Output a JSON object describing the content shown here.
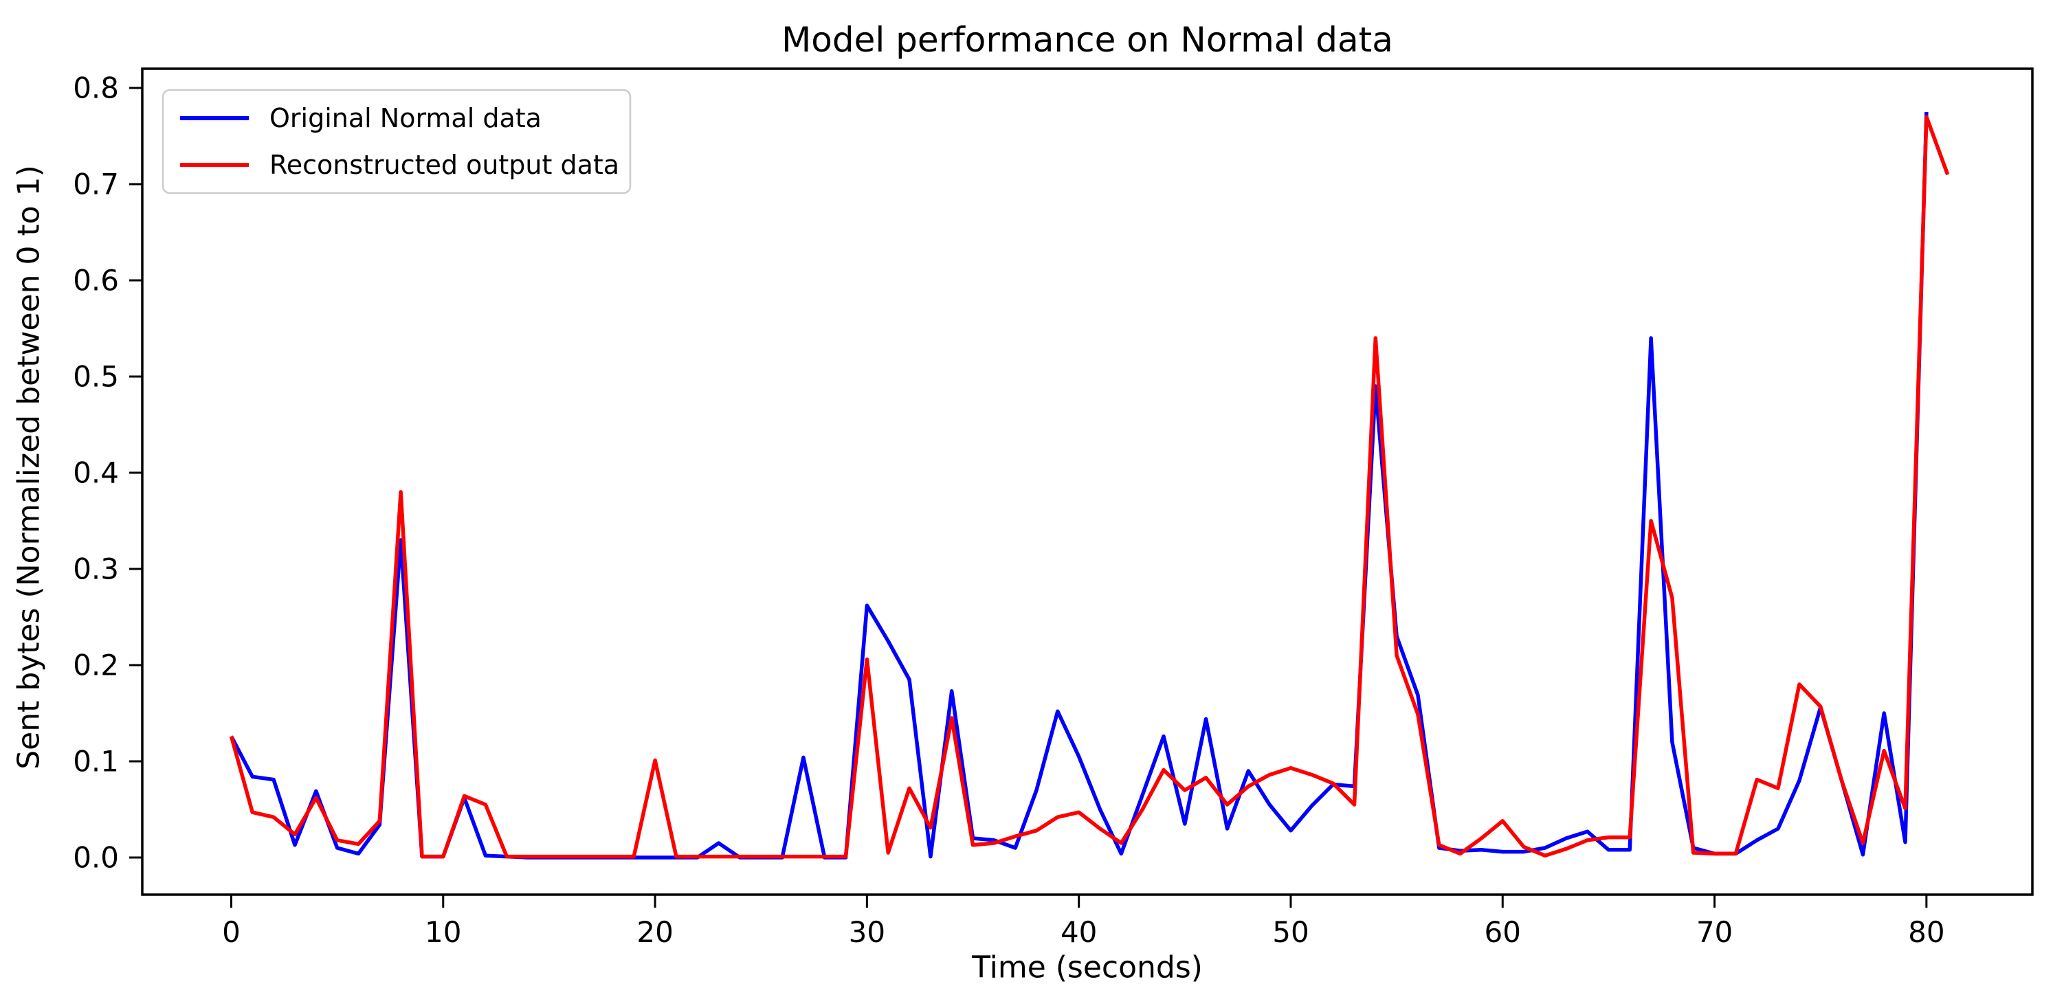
{
  "title": "Model performance on Normal data",
  "axes": {
    "xlabel": "Time (seconds)",
    "ylabel": "Sent bytes (Normalized between 0 to 1)"
  },
  "legend": {
    "position": "upper left",
    "entries": [
      {
        "label": "Original Normal data",
        "color": "#0000ff"
      },
      {
        "label": "Reconstructed output data",
        "color": "#ff0000"
      }
    ]
  },
  "colors": {
    "series_blue": "#0000ff",
    "series_red": "#ff0000",
    "spine": "#000000",
    "legend_border": "#cccccc",
    "background": "#ffffff"
  },
  "chart_data": {
    "type": "line",
    "title": "Model performance on Normal data",
    "xlabel": "Time (seconds)",
    "ylabel": "Sent bytes (Normalized between 0 to 1)",
    "xlim": [
      -4.2,
      85.0
    ],
    "ylim": [
      -0.0386,
      0.82
    ],
    "xticks": [
      0,
      10,
      20,
      30,
      40,
      50,
      60,
      70,
      80
    ],
    "yticks": [
      0.0,
      0.1,
      0.2,
      0.3,
      0.4,
      0.5,
      0.6,
      0.7,
      0.8
    ],
    "ytick_labels": [
      "0.0",
      "0.1",
      "0.2",
      "0.3",
      "0.4",
      "0.5",
      "0.6",
      "0.7",
      "0.8"
    ],
    "grid": false,
    "legend_position": "upper left",
    "series": [
      {
        "name": "Original Normal data",
        "color": "#0000ff",
        "x": [
          0,
          1,
          2,
          3,
          4,
          5,
          6,
          7,
          8,
          9,
          10,
          11,
          12,
          13,
          14,
          15,
          16,
          17,
          18,
          19,
          20,
          21,
          22,
          23,
          24,
          25,
          26,
          27,
          28,
          29,
          30,
          31,
          32,
          33,
          34,
          35,
          36,
          37,
          38,
          39,
          40,
          41,
          42,
          43,
          44,
          45,
          46,
          47,
          48,
          49,
          50,
          51,
          52,
          53,
          54,
          55,
          56,
          57,
          58,
          59,
          60,
          61,
          62,
          63,
          64,
          65,
          66,
          67,
          68,
          69,
          70,
          71,
          72,
          73,
          74,
          75,
          76,
          77,
          78,
          79,
          80
        ],
        "y": [
          0.126,
          0.084,
          0.081,
          0.013,
          0.069,
          0.01,
          0.004,
          0.034,
          0.33,
          0.001,
          0.001,
          0.062,
          0.002,
          0.001,
          0.0,
          0.0,
          0.0,
          0.0,
          0.0,
          0.0,
          0.0,
          0.0,
          0.0,
          0.015,
          0.0,
          0.0,
          0.0,
          0.104,
          0.0,
          0.0,
          0.262,
          0.225,
          0.185,
          0.001,
          0.173,
          0.02,
          0.018,
          0.01,
          0.07,
          0.152,
          0.105,
          0.05,
          0.004,
          0.065,
          0.126,
          0.035,
          0.144,
          0.03,
          0.09,
          0.055,
          0.028,
          0.054,
          0.076,
          0.074,
          0.49,
          0.23,
          0.169,
          0.01,
          0.007,
          0.008,
          0.006,
          0.006,
          0.01,
          0.02,
          0.027,
          0.008,
          0.008,
          0.54,
          0.12,
          0.01,
          0.004,
          0.004,
          0.018,
          0.03,
          0.08,
          0.156,
          0.08,
          0.003,
          0.15,
          0.016,
          0.775
        ]
      },
      {
        "name": "Reconstructed output data",
        "color": "#ff0000",
        "x": [
          0,
          1,
          2,
          3,
          4,
          5,
          6,
          7,
          8,
          9,
          10,
          11,
          12,
          13,
          14,
          15,
          16,
          17,
          18,
          19,
          20,
          21,
          22,
          23,
          24,
          25,
          26,
          27,
          28,
          29,
          30,
          31,
          32,
          33,
          34,
          35,
          36,
          37,
          38,
          39,
          40,
          41,
          42,
          43,
          44,
          45,
          46,
          47,
          48,
          49,
          50,
          51,
          52,
          53,
          54,
          55,
          56,
          57,
          58,
          59,
          60,
          61,
          62,
          63,
          64,
          65,
          66,
          67,
          68,
          69,
          70,
          71,
          72,
          73,
          74,
          75,
          76,
          77,
          78,
          79,
          80,
          81
        ],
        "y": [
          0.126,
          0.047,
          0.042,
          0.024,
          0.062,
          0.018,
          0.014,
          0.038,
          0.38,
          0.001,
          0.001,
          0.064,
          0.055,
          0.001,
          0.001,
          0.001,
          0.001,
          0.001,
          0.001,
          0.001,
          0.101,
          0.001,
          0.001,
          0.001,
          0.001,
          0.001,
          0.001,
          0.001,
          0.001,
          0.001,
          0.206,
          0.005,
          0.072,
          0.031,
          0.145,
          0.013,
          0.015,
          0.022,
          0.028,
          0.042,
          0.047,
          0.03,
          0.015,
          0.05,
          0.091,
          0.07,
          0.083,
          0.055,
          0.074,
          0.086,
          0.093,
          0.086,
          0.077,
          0.055,
          0.54,
          0.21,
          0.149,
          0.013,
          0.004,
          0.02,
          0.038,
          0.011,
          0.002,
          0.009,
          0.018,
          0.021,
          0.021,
          0.35,
          0.27,
          0.005,
          0.004,
          0.004,
          0.081,
          0.072,
          0.18,
          0.157,
          0.08,
          0.015,
          0.111,
          0.051,
          0.77,
          0.71
        ]
      }
    ]
  }
}
